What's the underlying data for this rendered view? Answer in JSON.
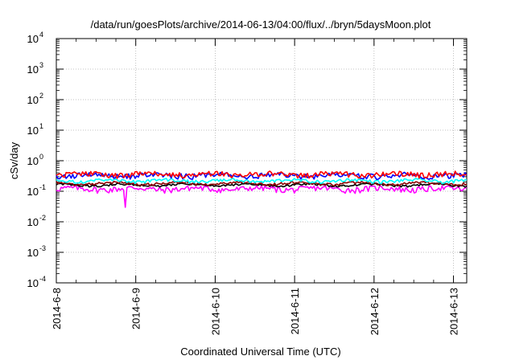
{
  "chart_data": {
    "type": "line",
    "title": "/data/run/goesPlots/archive/2014-06-13/04:00/flux/../bryn/5daysMoon.plot",
    "xlabel": "Coordinated Universal Time (UTC)",
    "ylabel": "cSv/day",
    "yscale": "log",
    "ylim": [
      0.0001,
      10000
    ],
    "xlim": [
      "2014-06-08 00:00",
      "2014-06-13 04:00"
    ],
    "grid": true,
    "legend": "none",
    "x_ticks": [
      "2014-6-8",
      "2014-6-9",
      "2014-6-10",
      "2014-6-11",
      "2014-6-12",
      "2014-6-13"
    ],
    "y_ticks": [
      {
        "base": "10",
        "exp": "-4"
      },
      {
        "base": "10",
        "exp": "-3"
      },
      {
        "base": "10",
        "exp": "-2"
      },
      {
        "base": "10",
        "exp": "-1"
      },
      {
        "base": "10",
        "exp": "0"
      },
      {
        "base": "10",
        "exp": "1"
      },
      {
        "base": "10",
        "exp": "2"
      },
      {
        "base": "10",
        "exp": "3"
      },
      {
        "base": "10",
        "exp": "4"
      }
    ],
    "series": [
      {
        "color": "#ff00ff",
        "level": 0.12,
        "noise": 0.22,
        "spikes": [
          {
            "x": "2014-06-08 21:00",
            "y": 0.03
          }
        ]
      },
      {
        "color": "#000000",
        "level": 0.16,
        "noise": 0.08
      },
      {
        "color": "#8b0000",
        "level": 0.18,
        "noise": 0.1
      },
      {
        "color": "#00ffff",
        "level": 0.22,
        "noise": 0.12
      },
      {
        "color": "#0000ff",
        "level": 0.33,
        "noise": 0.2
      },
      {
        "color": "#ff0000",
        "level": 0.36,
        "noise": 0.2
      }
    ]
  }
}
